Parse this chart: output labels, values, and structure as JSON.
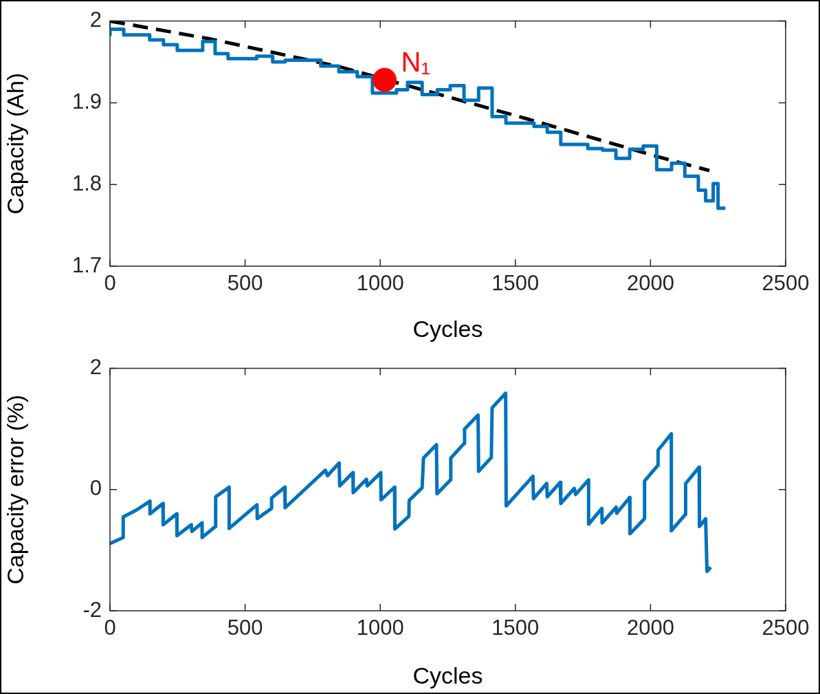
{
  "chart_data": [
    {
      "type": "step",
      "xlabel": "Cycles",
      "ylabel": "Capacity (Ah)",
      "xlim": [
        0,
        2500
      ],
      "xticks": [
        0,
        500,
        1000,
        1500,
        2000,
        2500
      ],
      "ylim": [
        1.7,
        2
      ],
      "yticks": [
        1.7,
        1.8,
        1.9,
        2
      ],
      "grid": false,
      "legend": false,
      "series": [
        {
          "color": "#0072bd",
          "x": [
            0,
            51,
            147,
            198,
            249,
            343,
            389,
            437,
            543,
            602,
            648,
            780,
            847,
            915,
            971,
            1060,
            1101,
            1155,
            1211,
            1259,
            1310,
            1364,
            1414,
            1465,
            1569,
            1618,
            1668,
            1768,
            1823,
            1872,
            1923,
            1973,
            2023,
            2078,
            2127,
            2177,
            2204,
            2232,
            2250,
            2277
          ],
          "values": [
            1.982,
            1.99,
            1.983,
            1.977,
            1.971,
            1.964,
            1.975,
            1.96,
            1.954,
            1.957,
            1.95,
            1.952,
            1.945,
            1.938,
            1.932,
            1.912,
            1.916,
            1.925,
            1.91,
            1.916,
            1.921,
            1.903,
            1.918,
            1.883,
            1.875,
            1.871,
            1.864,
            1.849,
            1.844,
            1.842,
            1.832,
            1.843,
            1.847,
            1.818,
            1.826,
            1.81,
            1.793,
            1.78,
            1.801,
            1.771
          ]
        },
        {
          "type": "line",
          "color": "#000000",
          "line_style": "dashed",
          "x": [
            0,
            373,
            850,
            1536,
            2027,
            2218
          ],
          "values": [
            2.0,
            1.978,
            1.944,
            1.881,
            1.834,
            1.817
          ]
        },
        {
          "type": "scatter",
          "color": "#ff0000",
          "marker": "circle",
          "x": [
            1016
          ],
          "values": [
            1.928
          ]
        }
      ],
      "annotations": [
        {
          "text": "N₁",
          "x": 1016,
          "y": 1.928
        }
      ]
    },
    {
      "type": "line",
      "xlabel": "Cycles",
      "ylabel": "Capacity error (%)",
      "xlim": [
        0,
        2500
      ],
      "xticks": [
        0,
        500,
        1000,
        1500,
        2000,
        2500
      ],
      "ylim": [
        -2,
        2
      ],
      "yticks": [
        -2,
        0,
        2
      ],
      "grid": false,
      "legend": false,
      "series": [
        {
          "color": "#0072bd",
          "x": [
            0,
            49,
            49,
            97,
            148,
            148,
            196,
            197,
            247,
            248,
            301,
            303,
            341,
            341,
            390,
            391,
            441,
            441,
            544,
            545,
            598,
            598,
            647,
            648,
            797,
            805,
            848,
            850,
            899,
            900,
            949,
            952,
            1002,
            1003,
            1053,
            1054,
            1106,
            1107,
            1155,
            1160,
            1208,
            1210,
            1260,
            1261,
            1310,
            1312,
            1362,
            1364,
            1411,
            1414,
            1464,
            1466,
            1565,
            1567,
            1616,
            1618,
            1666,
            1668,
            1718,
            1723,
            1771,
            1771,
            1820,
            1821,
            1873,
            1875,
            1923,
            1924,
            1978,
            1978,
            2027,
            2028,
            2077,
            2077,
            2129,
            2130,
            2180,
            2181,
            2204,
            2209,
            2223
          ],
          "values": [
            -0.89,
            -0.79,
            -0.45,
            -0.34,
            -0.19,
            -0.4,
            -0.23,
            -0.58,
            -0.4,
            -0.76,
            -0.58,
            -0.69,
            -0.55,
            -0.79,
            -0.61,
            -0.12,
            0.04,
            -0.64,
            -0.25,
            -0.48,
            -0.31,
            -0.14,
            0.04,
            -0.3,
            0.32,
            0.23,
            0.44,
            0.06,
            0.28,
            -0.05,
            0.17,
            0.06,
            0.28,
            -0.17,
            0.04,
            -0.65,
            -0.44,
            -0.18,
            0.03,
            0.52,
            0.74,
            -0.07,
            0.16,
            0.52,
            0.76,
            1.0,
            1.23,
            0.3,
            0.53,
            1.35,
            1.59,
            -0.27,
            0.22,
            -0.15,
            0.1,
            -0.12,
            0.12,
            -0.23,
            0.02,
            -0.08,
            0.16,
            -0.57,
            -0.31,
            -0.55,
            -0.29,
            -0.39,
            -0.13,
            -0.73,
            -0.48,
            0.14,
            0.4,
            0.65,
            0.92,
            -0.68,
            -0.41,
            0.1,
            0.37,
            -0.61,
            -0.48,
            -1.35,
            -1.28
          ]
        }
      ]
    }
  ]
}
